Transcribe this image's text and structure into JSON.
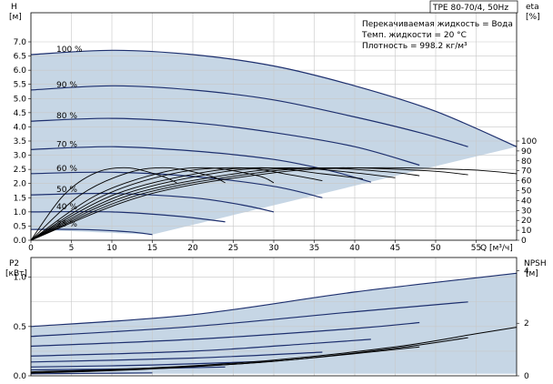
{
  "title": "TPE 80-70/4, 50Hz",
  "info": {
    "liquid": "Перекачиваемая жидкость = Вода",
    "temp": "Темп. жидкости = 20 °C",
    "density": "Плотность = 998.2 кг/м³"
  },
  "axes": {
    "top_left_label": "H",
    "top_left_unit": "[м]",
    "top_right_label": "eta",
    "top_right_unit": "[%]",
    "bottom_left_label": "P2",
    "bottom_left_unit": "[кВт]",
    "bottom_right_label": "NPSH",
    "bottom_right_unit": "[м]",
    "x_label": "Q [м³/ч]"
  },
  "chart_data": [
    {
      "type": "line",
      "name": "head_curves",
      "xlim": [
        0,
        60
      ],
      "ylim": [
        0,
        7.0
      ],
      "x_ticks": [
        0,
        5,
        10,
        15,
        20,
        25,
        30,
        35,
        40,
        45,
        50,
        55
      ],
      "y_ticks": [
        0.0,
        0.5,
        1.0,
        1.5,
        2.0,
        2.5,
        3.0,
        3.5,
        4.0,
        4.5,
        5.0,
        5.5,
        6.0,
        6.5,
        7.0
      ],
      "grid": true,
      "operating_area": "shaded",
      "series": [
        {
          "name": "100 %",
          "points": [
            [
              0,
              6.55
            ],
            [
              10,
              6.7
            ],
            [
              20,
              6.55
            ],
            [
              30,
              6.15
            ],
            [
              40,
              5.45
            ],
            [
              50,
              4.55
            ],
            [
              60,
              3.3
            ]
          ]
        },
        {
          "name": "90 %",
          "points": [
            [
              0,
              5.3
            ],
            [
              10,
              5.45
            ],
            [
              20,
              5.3
            ],
            [
              30,
              4.95
            ],
            [
              40,
              4.35
            ],
            [
              48,
              3.8
            ],
            [
              54,
              3.3
            ]
          ]
        },
        {
          "name": "80 %",
          "points": [
            [
              0,
              4.2
            ],
            [
              10,
              4.3
            ],
            [
              20,
              4.15
            ],
            [
              30,
              3.8
            ],
            [
              40,
              3.3
            ],
            [
              48,
              2.65
            ]
          ]
        },
        {
          "name": "70 %",
          "points": [
            [
              0,
              3.2
            ],
            [
              10,
              3.3
            ],
            [
              20,
              3.15
            ],
            [
              30,
              2.85
            ],
            [
              37,
              2.45
            ],
            [
              42,
              2.05
            ]
          ]
        },
        {
          "name": "60 %",
          "points": [
            [
              0,
              2.35
            ],
            [
              10,
              2.4
            ],
            [
              20,
              2.25
            ],
            [
              30,
              1.9
            ],
            [
              36,
              1.5
            ]
          ]
        },
        {
          "name": "50 %",
          "points": [
            [
              0,
              1.6
            ],
            [
              10,
              1.65
            ],
            [
              20,
              1.5
            ],
            [
              26,
              1.25
            ],
            [
              30,
              1.0
            ]
          ]
        },
        {
          "name": "40 %",
          "points": [
            [
              0,
              1.0
            ],
            [
              10,
              1.0
            ],
            [
              18,
              0.85
            ],
            [
              24,
              0.65
            ]
          ]
        },
        {
          "name": "25 %",
          "points": [
            [
              0,
              0.38
            ],
            [
              6,
              0.38
            ],
            [
              12,
              0.3
            ],
            [
              15,
              0.2
            ]
          ]
        }
      ]
    },
    {
      "type": "line",
      "name": "efficiency_curves",
      "ylim": [
        0,
        100
      ],
      "y_ticks": [
        0,
        10,
        20,
        30,
        40,
        50,
        60,
        70,
        80,
        90,
        100
      ],
      "series": [
        {
          "name": "",
          "points": [
            [
              0,
              0
            ],
            [
              4,
              45
            ],
            [
              8,
              68
            ],
            [
              12,
              73
            ],
            [
              16,
              65
            ],
            [
              18,
              58
            ]
          ]
        },
        {
          "name": "",
          "points": [
            [
              0,
              0
            ],
            [
              6,
              45
            ],
            [
              12,
              68
            ],
            [
              17,
              73
            ],
            [
              22,
              65
            ],
            [
              24,
              58
            ]
          ]
        },
        {
          "name": "",
          "points": [
            [
              0,
              0
            ],
            [
              8,
              45
            ],
            [
              16,
              68
            ],
            [
              22,
              73
            ],
            [
              28,
              65
            ],
            [
              30,
              58
            ]
          ]
        },
        {
          "name": "",
          "points": [
            [
              0,
              0
            ],
            [
              9,
              45
            ],
            [
              18,
              68
            ],
            [
              26,
              73
            ],
            [
              32,
              66
            ],
            [
              36,
              60
            ]
          ]
        },
        {
          "name": "",
          "points": [
            [
              0,
              0
            ],
            [
              10,
              45
            ],
            [
              21,
              68
            ],
            [
              29,
              73
            ],
            [
              36,
              67
            ],
            [
              41,
              62
            ]
          ]
        },
        {
          "name": "",
          "points": [
            [
              0,
              0
            ],
            [
              11,
              45
            ],
            [
              23,
              68
            ],
            [
              32,
              73
            ],
            [
              40,
              68
            ],
            [
              45,
              63
            ]
          ]
        },
        {
          "name": "",
          "points": [
            [
              0,
              0
            ],
            [
              12,
              45
            ],
            [
              26,
              68
            ],
            [
              35,
              73
            ],
            [
              44,
              69
            ],
            [
              48,
              65
            ]
          ]
        },
        {
          "name": "",
          "points": [
            [
              0,
              0
            ],
            [
              13,
              45
            ],
            [
              28,
              68
            ],
            [
              38,
              73
            ],
            [
              49,
              70
            ],
            [
              54,
              66
            ]
          ]
        },
        {
          "name": "",
          "points": [
            [
              0,
              0
            ],
            [
              14,
              45
            ],
            [
              30,
              68
            ],
            [
              42,
              73
            ],
            [
              54,
              71
            ],
            [
              60,
              67
            ]
          ]
        }
      ]
    },
    {
      "type": "line",
      "name": "power_npsh_curves",
      "xlim": [
        0,
        60
      ],
      "ylim": [
        0,
        1.2
      ],
      "y_ticks": [
        0.0,
        0.5,
        1.0
      ],
      "npsh_ylim": [
        0,
        4.5
      ],
      "npsh_ticks": [
        0,
        2,
        4
      ],
      "series": [
        {
          "name": "100 %",
          "points": [
            [
              0,
              0.5
            ],
            [
              20,
              0.62
            ],
            [
              40,
              0.85
            ],
            [
              60,
              1.04
            ]
          ]
        },
        {
          "name": "90 %",
          "points": [
            [
              0,
              0.4
            ],
            [
              20,
              0.5
            ],
            [
              40,
              0.65
            ],
            [
              54,
              0.75
            ]
          ]
        },
        {
          "name": "80 %",
          "points": [
            [
              0,
              0.3
            ],
            [
              20,
              0.37
            ],
            [
              40,
              0.48
            ],
            [
              48,
              0.54
            ]
          ]
        },
        {
          "name": "70 %",
          "points": [
            [
              0,
              0.2
            ],
            [
              20,
              0.25
            ],
            [
              35,
              0.33
            ],
            [
              42,
              0.37
            ]
          ]
        },
        {
          "name": "60 %",
          "points": [
            [
              0,
              0.14
            ],
            [
              20,
              0.18
            ],
            [
              36,
              0.24
            ]
          ]
        },
        {
          "name": "50 %",
          "points": [
            [
              0,
              0.09
            ],
            [
              15,
              0.11
            ],
            [
              30,
              0.15
            ]
          ]
        },
        {
          "name": "40 %",
          "points": [
            [
              0,
              0.06
            ],
            [
              12,
              0.07
            ],
            [
              24,
              0.09
            ]
          ]
        },
        {
          "name": "25 %",
          "points": [
            [
              0,
              0.02
            ],
            [
              8,
              0.025
            ],
            [
              15,
              0.03
            ]
          ]
        }
      ],
      "npsh_series": [
        {
          "name": "",
          "points": [
            [
              0,
              0.15
            ],
            [
              15,
              0.3
            ],
            [
              30,
              0.6
            ],
            [
              45,
              1.1
            ],
            [
              55,
              1.6
            ],
            [
              60,
              1.85
            ]
          ]
        },
        {
          "name": "",
          "points": [
            [
              0,
              0.12
            ],
            [
              15,
              0.28
            ],
            [
              30,
              0.55
            ],
            [
              45,
              1.05
            ],
            [
              54,
              1.45
            ]
          ]
        },
        {
          "name": "",
          "points": [
            [
              0,
              0.1
            ],
            [
              12,
              0.22
            ],
            [
              24,
              0.42
            ],
            [
              36,
              0.72
            ],
            [
              48,
              1.1
            ]
          ]
        }
      ]
    }
  ]
}
